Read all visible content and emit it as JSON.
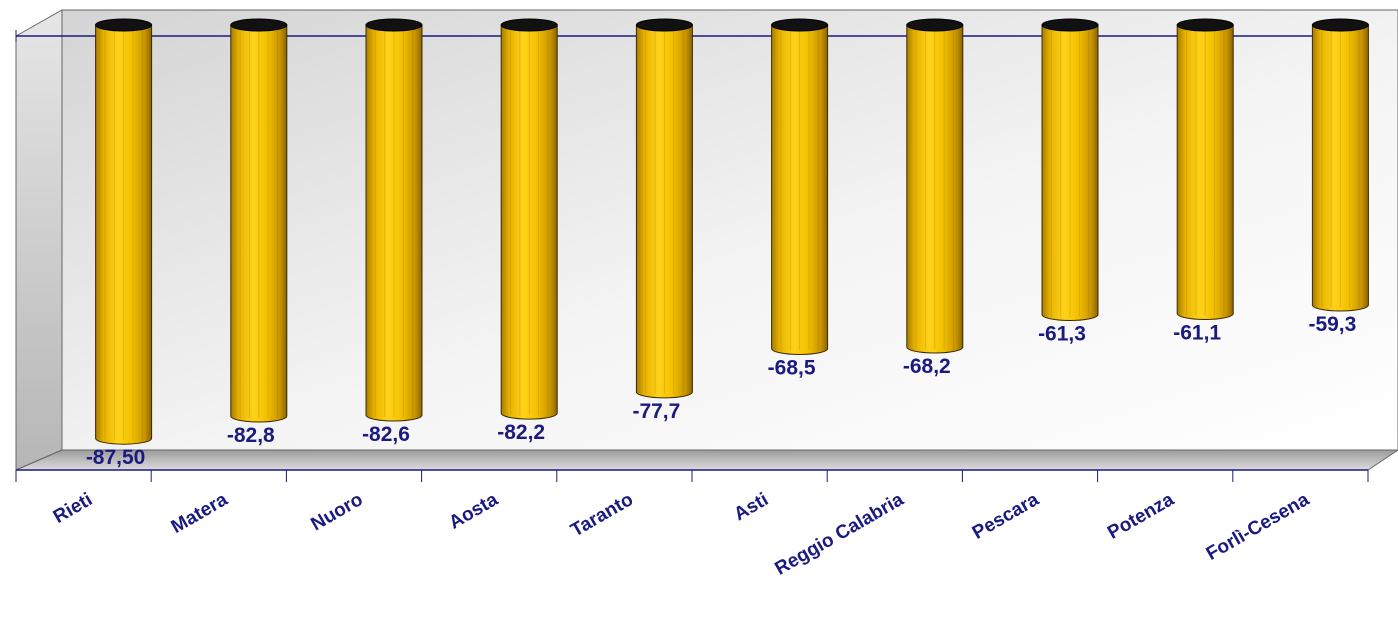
{
  "chart_data": {
    "type": "bar",
    "categories": [
      "Rieti",
      "Matera",
      "Nuoro",
      "Aosta",
      "Taranto",
      "Asti",
      "Reggio Calabria",
      "Pescara",
      "Potenza",
      "Forlì-Cesena"
    ],
    "values": [
      -87.5,
      -82.8,
      -82.6,
      -82.2,
      -77.7,
      -68.5,
      -68.2,
      -61.3,
      -61.1,
      -59.3
    ],
    "value_labels": [
      "-87,50",
      "-82,8",
      "-82,6",
      "-82,2",
      "-77,7",
      "-68,5",
      "-68,2",
      "-61,3",
      "-61,1",
      "-59,3"
    ],
    "ylim": [
      -90,
      0
    ],
    "grid": false,
    "bar_style": "3d-cylinder",
    "colors": {
      "bar": "#f5c400",
      "bar_dark": "#b88c00",
      "bar_top": "#111111",
      "labels": "#1a1a80",
      "axis": "#1a1a80"
    }
  }
}
